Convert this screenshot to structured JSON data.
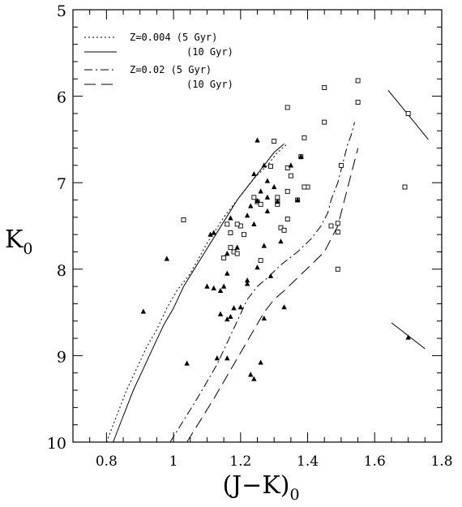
{
  "chart_data": {
    "type": "scatter",
    "title": "",
    "xlabel": {
      "main": "(J−K)",
      "sub": "0"
    },
    "ylabel": {
      "main": "K",
      "sub": "0"
    },
    "xlim": [
      0.7,
      1.8
    ],
    "ylim": [
      10,
      5
    ],
    "y_inverted": true,
    "grid": false,
    "x_ticks": [
      0.8,
      1,
      1.2,
      1.4,
      1.6,
      1.8
    ],
    "x_tick_labels": [
      "0.8",
      "1",
      "1.2",
      "1.4",
      "1.6",
      "1.8"
    ],
    "y_ticks": [
      5,
      6,
      7,
      8,
      9,
      10
    ],
    "y_tick_labels": [
      "5",
      "6",
      "7",
      "8",
      "9",
      "10"
    ],
    "legend": {
      "placement": "top-left",
      "entries": [
        {
          "style": "dotted",
          "label": "Z=0.004 (5 Gyr)"
        },
        {
          "style": "solid",
          "label": "(10 Gyr)"
        },
        {
          "style": "dashdot",
          "label": "Z=0.02 (5 Gyr)"
        },
        {
          "style": "longdash",
          "label": "(10 Gyr)"
        }
      ]
    },
    "series": [
      {
        "style": "dotted",
        "kind": "line",
        "x": [
          0.8,
          0.83,
          0.86,
          0.89,
          0.92,
          0.95,
          0.98,
          1.01,
          1.05,
          1.1,
          1.15,
          1.2,
          1.24,
          1.28,
          1.31,
          1.34
        ],
        "y": [
          10.0,
          9.7,
          9.4,
          9.15,
          8.9,
          8.7,
          8.45,
          8.25,
          8.05,
          7.7,
          7.4,
          7.15,
          6.95,
          6.8,
          6.65,
          6.55
        ]
      },
      {
        "style": "solid",
        "kind": "line",
        "x": [
          0.82,
          0.85,
          0.88,
          0.91,
          0.94,
          0.97,
          1.0,
          1.03,
          1.07,
          1.11,
          1.15,
          1.19,
          1.23,
          1.27,
          1.3,
          1.33
        ],
        "y": [
          10.0,
          9.7,
          9.4,
          9.15,
          8.9,
          8.65,
          8.45,
          8.2,
          7.95,
          7.7,
          7.45,
          7.2,
          7.0,
          6.8,
          6.65,
          6.55
        ]
      },
      {
        "style": "dashdot",
        "kind": "line",
        "x": [
          0.99,
          1.03,
          1.07,
          1.1,
          1.13,
          1.16,
          1.19,
          1.22,
          1.25,
          1.28,
          1.32,
          1.37,
          1.41,
          1.44,
          1.46,
          1.47,
          1.48,
          1.49,
          1.5,
          1.51,
          1.52,
          1.53,
          1.54
        ],
        "y": [
          10.0,
          9.75,
          9.5,
          9.3,
          9.1,
          8.85,
          8.6,
          8.35,
          8.2,
          8.1,
          7.95,
          7.8,
          7.65,
          7.5,
          7.35,
          7.2,
          7.1,
          7.0,
          6.85,
          6.7,
          6.55,
          6.45,
          6.3
        ]
      },
      {
        "style": "longdash",
        "kind": "line",
        "x": [
          1.04,
          1.08,
          1.12,
          1.15,
          1.18,
          1.21,
          1.24,
          1.27,
          1.3,
          1.33,
          1.37,
          1.41,
          1.45,
          1.47,
          1.49,
          1.5,
          1.51,
          1.52,
          1.53,
          1.54,
          1.55
        ],
        "y": [
          10.0,
          9.75,
          9.5,
          9.3,
          9.1,
          8.9,
          8.7,
          8.5,
          8.35,
          8.25,
          8.1,
          7.95,
          7.8,
          7.65,
          7.5,
          7.35,
          7.2,
          7.05,
          6.9,
          6.75,
          6.6
        ]
      },
      {
        "marker": "open-square",
        "kind": "points",
        "x": [
          1.55,
          1.45,
          1.55,
          1.34,
          1.45,
          1.3,
          1.39,
          1.38,
          1.34,
          1.35,
          1.5,
          1.29,
          1.34,
          1.37,
          1.4,
          1.39,
          1.31,
          1.24,
          1.25,
          1.31,
          1.26,
          1.31,
          1.2,
          1.34,
          1.49,
          1.47,
          1.49,
          1.19,
          1.16,
          1.17,
          1.32,
          1.33,
          1.21,
          1.17,
          1.18,
          1.19,
          1.15,
          1.26,
          1.49,
          1.03,
          1.69
        ],
        "y": [
          5.82,
          5.9,
          6.07,
          6.13,
          6.3,
          6.52,
          6.48,
          6.7,
          6.83,
          6.92,
          6.8,
          6.81,
          7.1,
          7.2,
          7.05,
          7.05,
          7.17,
          7.17,
          7.22,
          7.22,
          7.25,
          7.25,
          7.5,
          7.42,
          7.47,
          7.5,
          7.57,
          7.48,
          7.48,
          7.58,
          7.52,
          7.55,
          7.6,
          7.75,
          7.8,
          7.82,
          7.87,
          7.9,
          8.0,
          7.43,
          7.05
        ]
      },
      {
        "marker": "filled-triangle",
        "kind": "points",
        "x": [
          1.25,
          1.27,
          1.24,
          1.28,
          1.26,
          1.3,
          1.28,
          1.31,
          1.35,
          1.38,
          1.25,
          1.23,
          1.37,
          1.28,
          1.17,
          1.12,
          1.11,
          1.24,
          1.22,
          1.19,
          1.27,
          1.32,
          1.25,
          1.16,
          1.29,
          1.16,
          1.1,
          1.22,
          1.22,
          1.12,
          1.14,
          1.15,
          0.98,
          1.18,
          1.2,
          1.14,
          1.33,
          1.17,
          1.16,
          1.27,
          0.91,
          1.13,
          1.16,
          1.04,
          1.26,
          1.23,
          1.24
        ],
        "y": [
          6.51,
          6.8,
          6.9,
          6.98,
          7.1,
          7.05,
          7.17,
          7.22,
          6.8,
          6.7,
          7.21,
          7.27,
          7.2,
          7.33,
          7.41,
          7.58,
          7.6,
          7.48,
          7.38,
          7.75,
          7.73,
          7.68,
          7.98,
          7.82,
          8.08,
          8.05,
          8.2,
          8.13,
          8.17,
          8.22,
          8.25,
          8.2,
          7.88,
          8.45,
          8.44,
          8.52,
          8.44,
          8.55,
          8.58,
          8.57,
          8.49,
          9.03,
          9.03,
          9.09,
          9.08,
          9.22,
          9.27
        ]
      },
      {
        "marker": "open-square",
        "kind": "error-point",
        "x": [
          1.7
        ],
        "y": [
          6.2
        ],
        "segment": {
          "x": [
            1.64,
            1.76
          ],
          "y": [
            5.93,
            6.5
          ]
        }
      },
      {
        "marker": "filled-triangle",
        "kind": "error-point",
        "x": [
          1.7
        ],
        "y": [
          8.79
        ],
        "segment": {
          "x": [
            1.65,
            1.75
          ],
          "y": [
            8.62,
            8.92
          ]
        }
      }
    ]
  }
}
